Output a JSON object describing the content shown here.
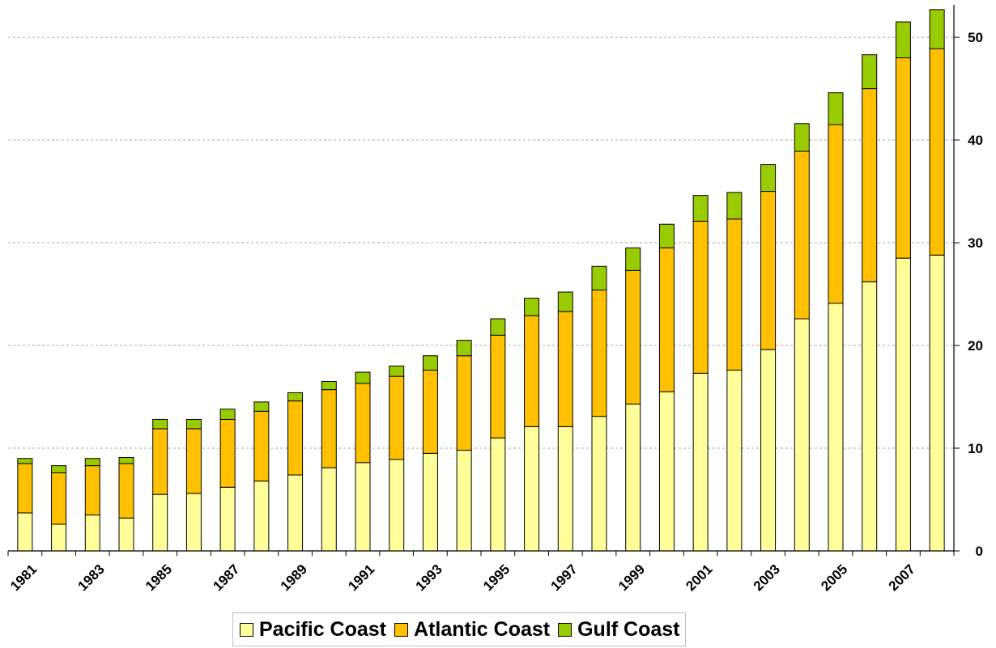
{
  "chart_data": {
    "type": "bar",
    "stacked": true,
    "title": "",
    "xlabel": "",
    "ylabel": "",
    "ylim": [
      0,
      53
    ],
    "y_ticks": [
      0,
      10,
      20,
      30,
      40,
      50
    ],
    "y_axis_side": "right",
    "grid": "horizontal dotted",
    "legend_position": "bottom",
    "x_tick_labels": [
      "1981",
      "1983",
      "1985",
      "1987",
      "1989",
      "1991",
      "1993",
      "1995",
      "1997",
      "1999",
      "2001",
      "2003",
      "2005",
      "2007"
    ],
    "categories": [
      "1981",
      "1982",
      "1983",
      "1984",
      "1985",
      "1986",
      "1987",
      "1988",
      "1989",
      "1990",
      "1991",
      "1992",
      "1993",
      "1994",
      "1995",
      "1996",
      "1997",
      "1998",
      "1999",
      "2000",
      "2001",
      "2002",
      "2003",
      "2004",
      "2005",
      "2006",
      "2007",
      "2008"
    ],
    "series": [
      {
        "name": "Pacific Coast",
        "color": "#ffff99",
        "values": [
          3.7,
          2.6,
          3.5,
          3.2,
          5.5,
          5.6,
          6.2,
          6.8,
          7.4,
          8.1,
          8.6,
          8.9,
          9.5,
          9.8,
          11.0,
          12.1,
          12.1,
          13.1,
          14.3,
          15.5,
          17.3,
          17.6,
          19.6,
          22.6,
          24.1,
          26.2,
          28.5,
          28.8
        ]
      },
      {
        "name": "Atlantic Coast",
        "color": "#ffc000",
        "values": [
          4.8,
          5.0,
          4.8,
          5.3,
          6.4,
          6.3,
          6.6,
          6.8,
          7.2,
          7.6,
          7.7,
          8.1,
          8.1,
          9.2,
          10.0,
          10.8,
          11.2,
          12.3,
          13.0,
          14.0,
          14.8,
          14.7,
          15.4,
          16.3,
          17.4,
          18.8,
          19.5,
          20.1
        ]
      },
      {
        "name": "Gulf Coast",
        "color": "#99cc00",
        "values": [
          0.5,
          0.7,
          0.7,
          0.6,
          0.9,
          0.9,
          1.0,
          0.9,
          0.8,
          0.8,
          1.1,
          1.0,
          1.4,
          1.5,
          1.6,
          1.7,
          1.9,
          2.3,
          2.2,
          2.3,
          2.5,
          2.6,
          2.6,
          2.7,
          3.1,
          3.3,
          3.5,
          3.8
        ]
      }
    ]
  }
}
